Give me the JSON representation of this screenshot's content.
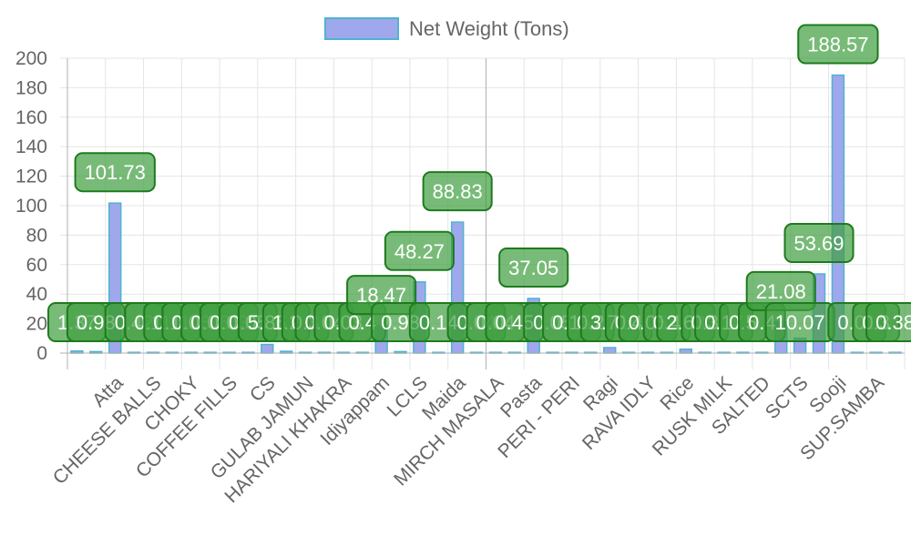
{
  "chart_data": {
    "type": "bar",
    "legend": {
      "label": "Net Weight (Tons)",
      "position": "top"
    },
    "grid": true,
    "ylim": [
      0,
      200
    ],
    "yticks": [
      0,
      20,
      40,
      60,
      80,
      100,
      120,
      140,
      160,
      180,
      200
    ],
    "series": [
      {
        "name": "Net Weight (Tons)",
        "color": "#9fa8ec",
        "border_color": "#4fb3cf",
        "label_color": "#3f9e3f",
        "label_border": "#1e7b1e",
        "points": [
          {
            "category": "",
            "value": 1.37,
            "label": "1.37"
          },
          {
            "category": "",
            "value": 0.98,
            "label": "0.98"
          },
          {
            "category": "Atta",
            "value": 101.73,
            "label": "101.73"
          },
          {
            "category": "",
            "value": 0.42,
            "label": "0.42"
          },
          {
            "category": "CHEESE BALLS",
            "value": 0.11,
            "label": "0.11"
          },
          {
            "category": "",
            "value": 0.11,
            "label": "0.11"
          },
          {
            "category": "CHOKY",
            "value": 0.06,
            "label": "0.06"
          },
          {
            "category": "",
            "value": 0.06,
            "label": "0.06"
          },
          {
            "category": "COFFEE FILLS",
            "value": 0.03,
            "label": "0.03"
          },
          {
            "category": "",
            "value": 0.05,
            "label": "0.05"
          },
          {
            "category": "CS",
            "value": 5.86,
            "label": "5.86"
          },
          {
            "category": "",
            "value": 1.2,
            "label": "1.2"
          },
          {
            "category": "GULAB JAMUN",
            "value": 0.3,
            "label": "0.3"
          },
          {
            "category": "",
            "value": 0.04,
            "label": "0.04"
          },
          {
            "category": "HARIYALI KHAKRA",
            "value": 0.03,
            "label": "0.03"
          },
          {
            "category": "",
            "value": 0.4,
            "label": "0.4"
          },
          {
            "category": "Idiyappam",
            "value": 18.47,
            "label": "18.47"
          },
          {
            "category": "",
            "value": 0.98,
            "label": "0.98"
          },
          {
            "category": "LCLS",
            "value": 48.27,
            "label": "48.27"
          },
          {
            "category": "",
            "value": 0.14,
            "label": "0.14"
          },
          {
            "category": "Maida",
            "value": 88.83,
            "label": "88.83"
          },
          {
            "category": "",
            "value": 0.04,
            "label": "0.04"
          },
          {
            "category": "MIRCH MASALA",
            "value": 0.04,
            "label": "0.04"
          },
          {
            "category": "",
            "value": 0.45,
            "label": "0.45"
          },
          {
            "category": "Pasta",
            "value": 37.05,
            "label": "37.05"
          },
          {
            "category": "",
            "value": 0.05,
            "label": "0.05"
          },
          {
            "category": "PERI - PERI",
            "value": 0.15,
            "label": "0.15"
          },
          {
            "category": "",
            "value": 0.2,
            "label": "0.2"
          },
          {
            "category": "Ragi",
            "value": 3.71,
            "label": "3.71"
          },
          {
            "category": "",
            "value": 0.4,
            "label": "0.4"
          },
          {
            "category": "RAVA IDLY",
            "value": 0.05,
            "label": "0.05"
          },
          {
            "category": "",
            "value": 0.4,
            "label": "0.4"
          },
          {
            "category": "Rice",
            "value": 2.63,
            "label": "2.63"
          },
          {
            "category": "",
            "value": 0.3,
            "label": "0.3"
          },
          {
            "category": "RUSK MILK",
            "value": 0.17,
            "label": "0.17"
          },
          {
            "category": "",
            "value": 0.5,
            "label": "0.5"
          },
          {
            "category": "SALTED",
            "value": 0.4,
            "label": "0.4"
          },
          {
            "category": "",
            "value": 21.08,
            "label": "21.08"
          },
          {
            "category": "SCTS",
            "value": 10.07,
            "label": "10.07"
          },
          {
            "category": "",
            "value": 53.69,
            "label": "53.69"
          },
          {
            "category": "Sooji",
            "value": 188.57,
            "label": "188.57"
          },
          {
            "category": "",
            "value": 0.01,
            "label": "0.01"
          },
          {
            "category": "SUP.SAMBA",
            "value": 0.3,
            "label": "0.3"
          },
          {
            "category": "",
            "value": 0.38,
            "label": "0.38"
          }
        ]
      }
    ]
  }
}
